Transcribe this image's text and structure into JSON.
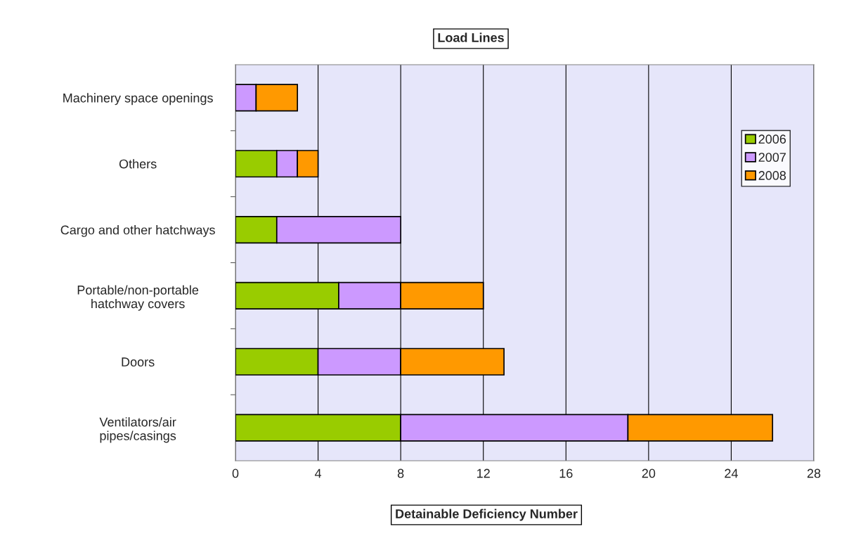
{
  "chart_data": {
    "type": "bar",
    "orientation": "horizontal",
    "stacked": true,
    "title": "Load Lines",
    "xlabel": "Detainable Deficiency Number",
    "categories": [
      "Machinery space openings",
      "Others",
      "Cargo and other hatchways",
      "Portable/non-portable\nhatchway covers",
      "Doors",
      "Ventilators/air\npipes/casings"
    ],
    "series": [
      {
        "name": "2006",
        "color": "#99cc00",
        "values": [
          0,
          2,
          2,
          5,
          4,
          8
        ]
      },
      {
        "name": "2007",
        "color": "#cc99ff",
        "values": [
          1,
          1,
          6,
          3,
          4,
          11
        ]
      },
      {
        "name": "2008",
        "color": "#ff9900",
        "values": [
          2,
          1,
          0,
          4,
          5,
          7
        ]
      }
    ],
    "xlim": [
      0,
      28
    ],
    "xticks": [
      0,
      4,
      8,
      12,
      16,
      20,
      24,
      28
    ],
    "grid": "x",
    "legend": "top right"
  }
}
